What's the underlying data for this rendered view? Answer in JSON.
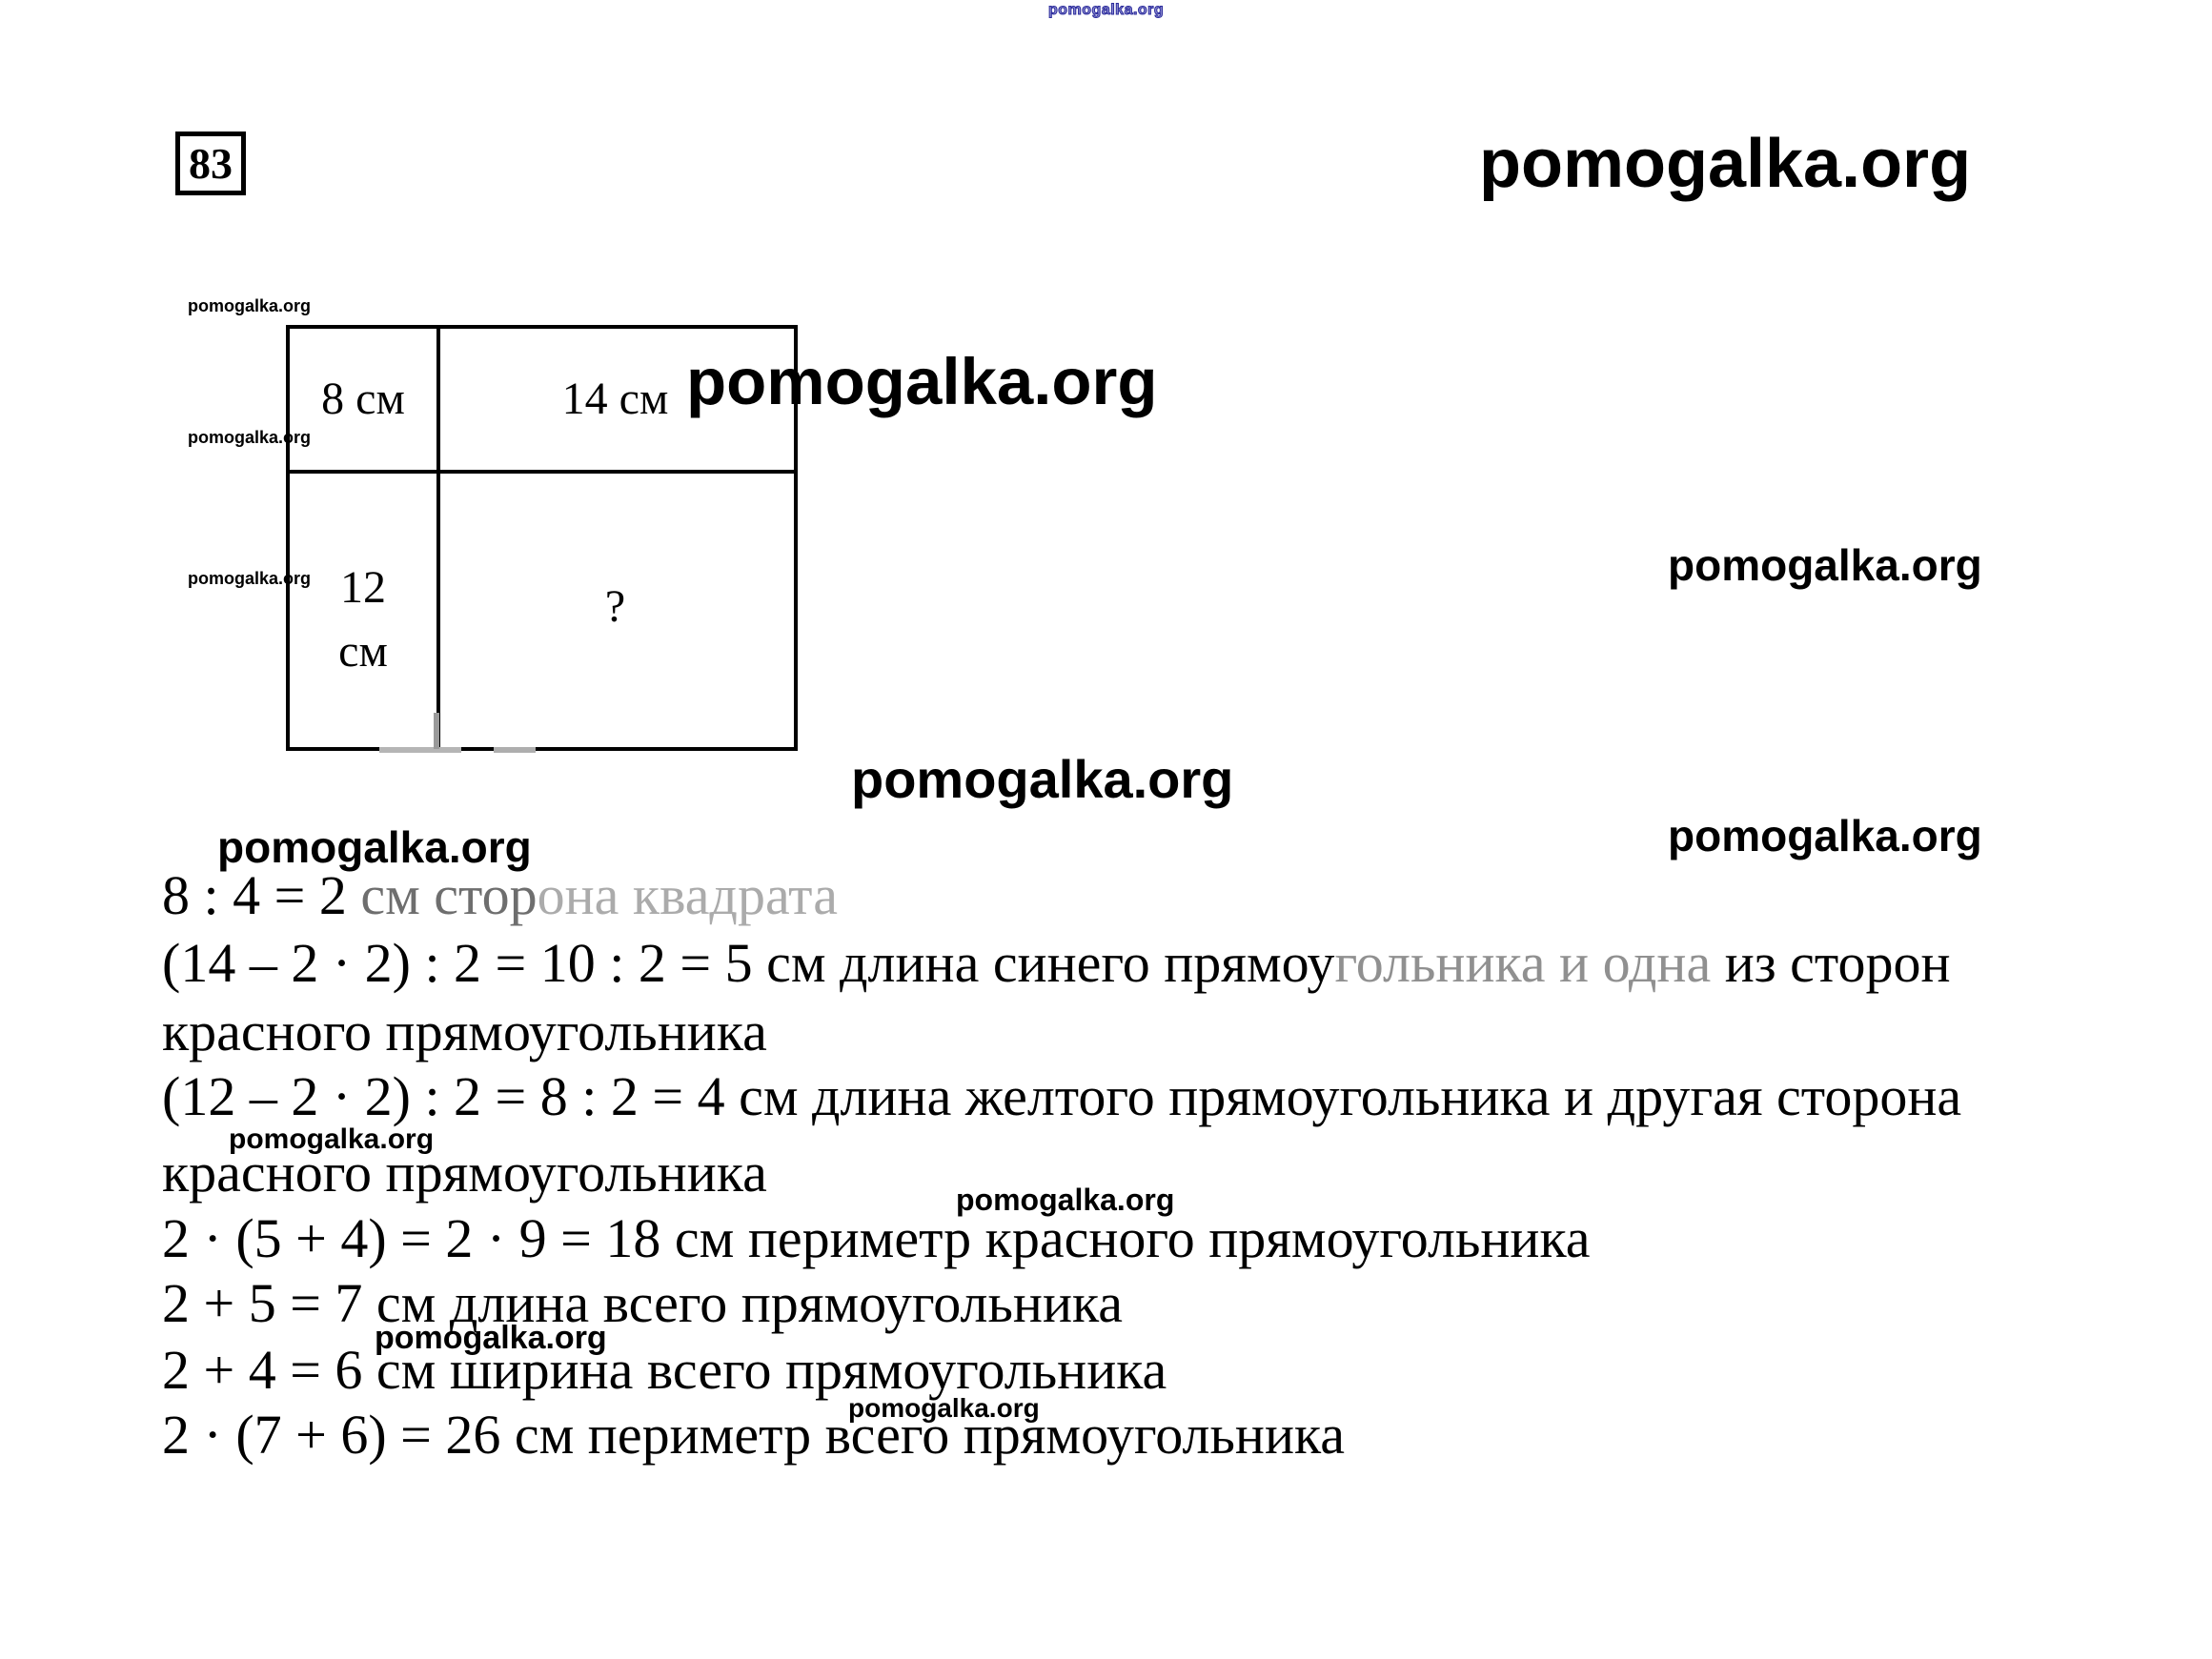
{
  "site": {
    "watermark": "pomogalka.org"
  },
  "colors": {
    "watermark_blue": "#2b2b9b",
    "text_black": "#000000",
    "faded_gray": "#ababab"
  },
  "problem": {
    "number": "83"
  },
  "diagram": {
    "top_left_label": "8 см",
    "top_right_label": "14 см",
    "bottom_left_label_line1": "12",
    "bottom_left_label_line2": "см",
    "bottom_right_label": "?"
  },
  "solution": {
    "line1": {
      "part_black": "8 : 4 = 2 ",
      "part_mid": "см стор",
      "part_light": "она квадрата"
    },
    "line2": {
      "pre": "(14 – 2 · 2) : 2 = 10 : 2 = 5 см длина синего прямоу",
      "faded": "гольника и одна",
      "post": " из сторон"
    },
    "line3": "красного прямоугольника",
    "line4": "(12 – 2 · 2) : 2 = 8 : 2 = 4 см длина желтого прямоугольника и другая сторона",
    "line5": "красного прямоугольника",
    "line6": "2 · (5 + 4) = 2 · 9 = 18 см периметр красного прямоугольника",
    "line7": "2 + 5 = 7 см длина всего прямоугольника",
    "line8": "2 + 4 = 6 см ширина всего прямоугольника",
    "line9": "2 · (7 + 6) = 26 см периметр всего прямоугольника"
  }
}
